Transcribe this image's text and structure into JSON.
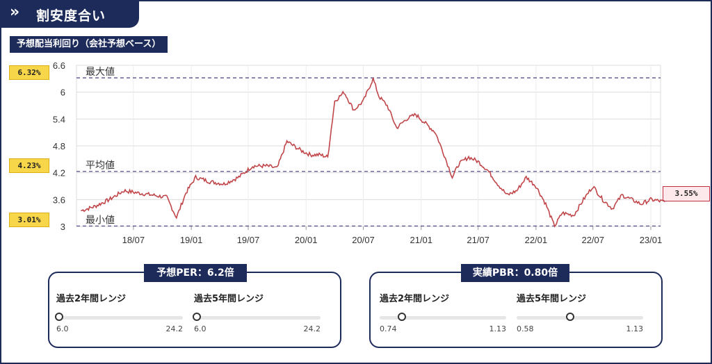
{
  "header": {
    "icon": "»",
    "title": "割安度合い"
  },
  "section_title": "予想配当利回り（会社予想ベース）",
  "chart_data": {
    "type": "line",
    "x_tick_labels": [
      "18/07",
      "19/01",
      "19/07",
      "20/01",
      "20/07",
      "21/01",
      "21/07",
      "22/01",
      "22/07",
      "23/01"
    ],
    "y_ticks": [
      3,
      3.6,
      4.2,
      4.8,
      5.4,
      6,
      6.6
    ],
    "ylim": [
      3,
      6.6
    ],
    "xlim": [
      "2018-01",
      "2023-02"
    ],
    "grid": true,
    "reference_lines": [
      {
        "label": "最大値",
        "value": 6.32,
        "badge": "6.32%"
      },
      {
        "label": "平均値",
        "value": 4.23,
        "badge": "4.23%"
      },
      {
        "label": "最小値",
        "value": 3.01,
        "badge": "3.01%"
      }
    ],
    "current": {
      "badge": "3.55%",
      "value": 3.55
    },
    "series": [
      {
        "color": "#c0464a",
        "x": [
          "2018-01-15",
          "2018-03-01",
          "2018-04-15",
          "2018-06-01",
          "2018-07-15",
          "2018-09-01",
          "2018-10-15",
          "2018-11-15",
          "2018-12-15",
          "2019-01-15",
          "2019-03-01",
          "2019-04-15",
          "2019-06-01",
          "2019-07-15",
          "2019-09-01",
          "2019-10-01",
          "2019-11-01",
          "2019-12-15",
          "2020-01-15",
          "2020-02-15",
          "2020-03-10",
          "2020-04-01",
          "2020-05-01",
          "2020-06-01",
          "2020-07-01",
          "2020-08-01",
          "2020-08-20",
          "2020-09-15",
          "2020-10-15",
          "2020-11-15",
          "2020-12-15",
          "2021-01-15",
          "2021-02-15",
          "2021-03-15",
          "2021-04-10",
          "2021-05-01",
          "2021-06-01",
          "2021-07-01",
          "2021-08-01",
          "2021-09-01",
          "2021-10-01",
          "2021-11-01",
          "2021-12-01",
          "2022-01-01",
          "2022-02-01",
          "2022-03-01",
          "2022-03-25",
          "2022-05-01",
          "2022-06-01",
          "2022-07-01",
          "2022-08-01",
          "2022-09-01",
          "2022-10-01",
          "2022-11-01",
          "2022-12-01",
          "2023-01-01",
          "2023-02-15"
        ],
        "y": [
          3.35,
          3.45,
          3.6,
          3.8,
          3.75,
          3.7,
          3.65,
          3.2,
          3.75,
          4.1,
          4.0,
          3.95,
          4.1,
          4.35,
          4.35,
          4.3,
          4.9,
          4.7,
          4.6,
          4.6,
          4.55,
          5.8,
          6.0,
          5.6,
          5.8,
          6.3,
          5.9,
          5.7,
          5.2,
          5.4,
          5.5,
          5.3,
          5.1,
          4.6,
          4.1,
          4.4,
          4.55,
          4.45,
          4.25,
          3.95,
          3.7,
          3.8,
          4.1,
          3.9,
          3.5,
          3.0,
          3.3,
          3.25,
          3.6,
          3.9,
          3.6,
          3.4,
          3.7,
          3.6,
          3.5,
          3.6,
          3.55
        ]
      }
    ]
  },
  "per_box": {
    "title": "予想PER：6.2倍",
    "ranges": [
      {
        "label": "過去2年間レンジ",
        "min": "6.0",
        "max": "24.2",
        "position": 0.0
      },
      {
        "label": "過去5年間レンジ",
        "min": "6.0",
        "max": "24.2",
        "position": 0.0
      }
    ]
  },
  "pbr_box": {
    "title": "実績PBR：0.80倍",
    "ranges": [
      {
        "label": "過去2年間レンジ",
        "min": "0.74",
        "max": "1.13",
        "position": 0.154
      },
      {
        "label": "過去5年間レンジ",
        "min": "0.58",
        "max": "1.13",
        "position": 0.4
      }
    ]
  }
}
